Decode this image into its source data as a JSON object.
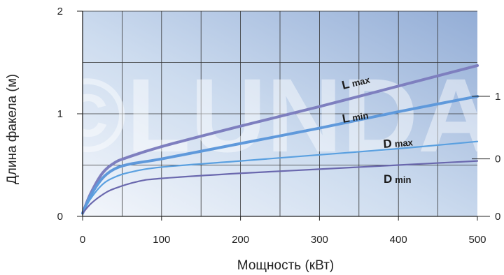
{
  "chart_data": {
    "type": "line",
    "title": "",
    "xlabel": "Мощность (кВт)",
    "ylabel": "Длина факела (м)",
    "xlim": [
      0,
      500
    ],
    "ylim": [
      0,
      2
    ],
    "x_ticks": [
      0,
      100,
      200,
      300,
      400,
      500
    ],
    "x_tick_labels": [
      "0",
      "100",
      "200",
      "300",
      "400",
      "500"
    ],
    "y_ticks": [
      0,
      1,
      2
    ],
    "y_tick_labels": [
      "0",
      "1",
      "2"
    ],
    "right_tick_labels": [
      "1",
      "0",
      "0"
    ],
    "watermark": "©LUNDA",
    "grid": true,
    "legend": "none",
    "series": [
      {
        "name": "L max",
        "label_main": "L",
        "label_sub": "max",
        "color": "#7e7fbf",
        "x": [
          0,
          10,
          25,
          40,
          55,
          100,
          200,
          300,
          400,
          500
        ],
        "y": [
          0.03,
          0.22,
          0.42,
          0.52,
          0.57,
          0.68,
          0.88,
          1.07,
          1.27,
          1.47
        ]
      },
      {
        "name": "L min",
        "label_main": "L",
        "label_sub": "min",
        "color": "#5f99db",
        "x": [
          0,
          10,
          25,
          40,
          60,
          100,
          200,
          300,
          400,
          500
        ],
        "y": [
          0.03,
          0.2,
          0.37,
          0.46,
          0.51,
          0.56,
          0.71,
          0.86,
          1.02,
          1.17
        ]
      },
      {
        "name": "D max",
        "label_main": "D",
        "label_sub": "max",
        "color": "#5aa0e0",
        "x": [
          0,
          10,
          25,
          40,
          60,
          100,
          200,
          300,
          400,
          500
        ],
        "y": [
          0.03,
          0.17,
          0.31,
          0.38,
          0.43,
          0.48,
          0.54,
          0.6,
          0.66,
          0.73
        ]
      },
      {
        "name": "D min",
        "label_main": "D",
        "label_sub": "min",
        "color": "#6a68ae",
        "x": [
          0,
          10,
          25,
          40,
          70,
          100,
          200,
          300,
          400,
          500
        ],
        "y": [
          0.03,
          0.12,
          0.21,
          0.27,
          0.34,
          0.37,
          0.42,
          0.46,
          0.5,
          0.54
        ]
      }
    ]
  }
}
